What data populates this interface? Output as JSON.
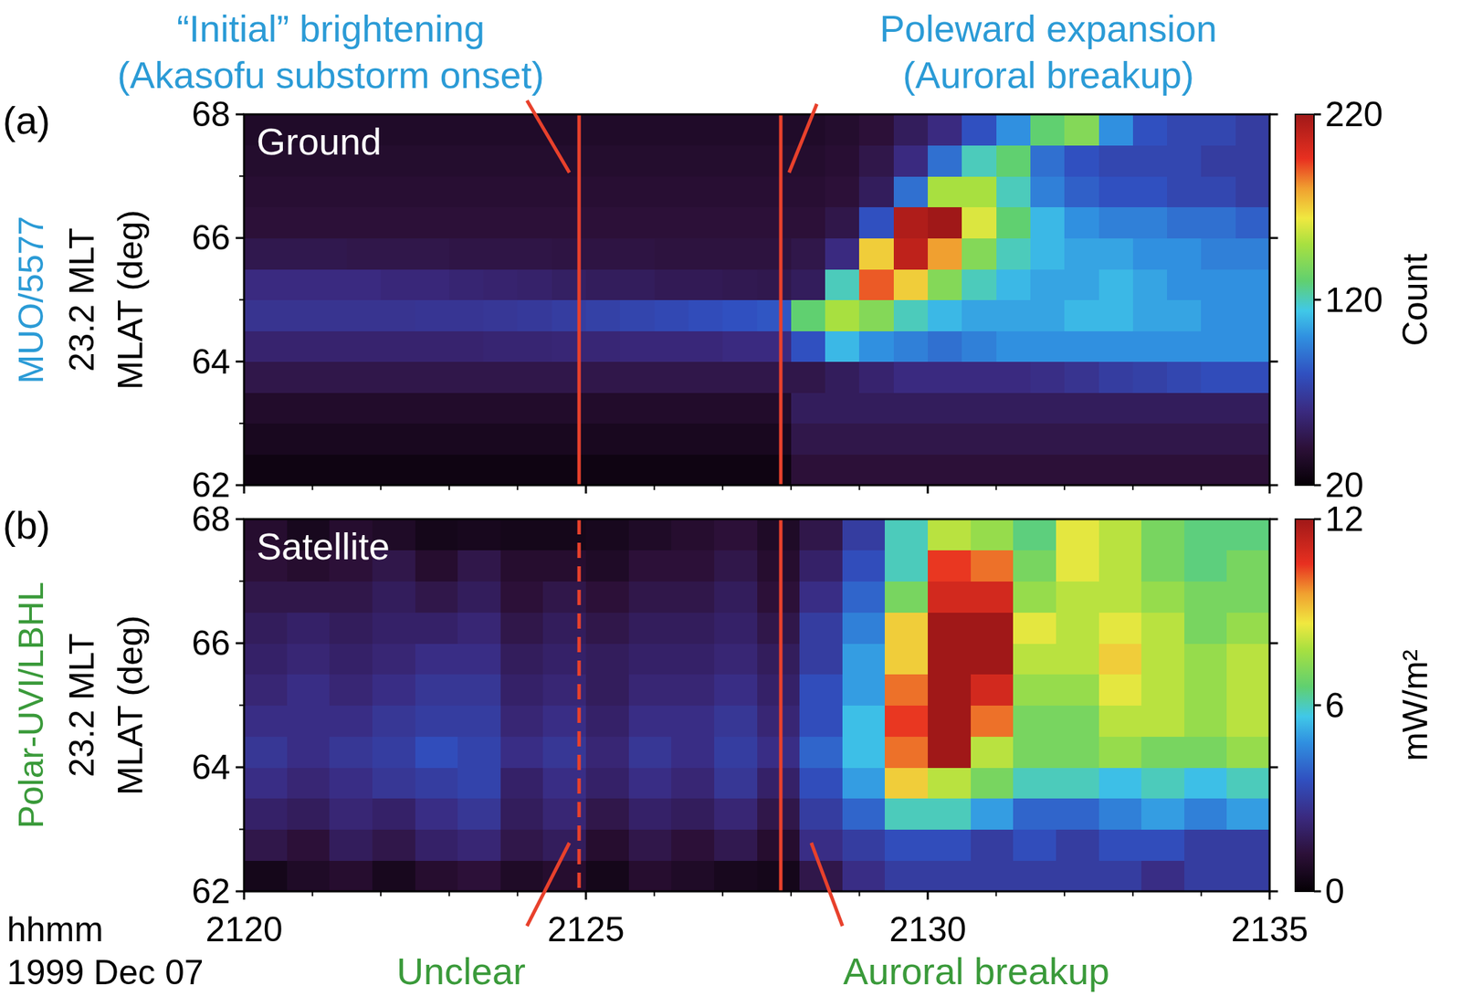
{
  "chart_data": [
    {
      "type": "heatmap",
      "panel": "(a)",
      "title": "Ground",
      "ylabel": [
        "MUO/5577",
        "23.2 MLT",
        "MLAT (deg)"
      ],
      "x_edges": [
        2120,
        2120.5,
        2121,
        2121.5,
        2122,
        2122.5,
        2123,
        2123.5,
        2124,
        2124.5,
        2125,
        2125.5,
        2126,
        2126.5,
        2127,
        2127.5,
        2128,
        2128.5,
        2129,
        2129.5,
        2130,
        2130.5,
        2131,
        2131.5,
        2132,
        2132.5,
        2133,
        2133.5,
        2134,
        2134.5,
        2135
      ],
      "y_edges": [
        62,
        62.5,
        63,
        63.5,
        64,
        64.5,
        65,
        65.5,
        66,
        66.5,
        67,
        67.5,
        68
      ],
      "values": [
        [
          25,
          25,
          25,
          25,
          25,
          25,
          25,
          25,
          25,
          25,
          25,
          25,
          25,
          25,
          25,
          25,
          40,
          40,
          40,
          40,
          40,
          40,
          40,
          40,
          40,
          40,
          40,
          40,
          40,
          40
        ],
        [
          30,
          30,
          30,
          30,
          30,
          30,
          30,
          30,
          30,
          30,
          30,
          30,
          30,
          30,
          30,
          30,
          45,
          45,
          45,
          45,
          45,
          45,
          45,
          45,
          45,
          45,
          45,
          45,
          45,
          45
        ],
        [
          35,
          35,
          35,
          35,
          35,
          35,
          35,
          35,
          35,
          35,
          35,
          35,
          35,
          35,
          35,
          35,
          50,
          50,
          50,
          50,
          50,
          50,
          50,
          50,
          50,
          50,
          50,
          50,
          50,
          50
        ],
        [
          45,
          45,
          45,
          45,
          45,
          45,
          45,
          45,
          45,
          45,
          45,
          45,
          45,
          45,
          45,
          45,
          45,
          50,
          55,
          60,
          60,
          60,
          60,
          62,
          65,
          70,
          72,
          75,
          78,
          78
        ],
        [
          55,
          55,
          55,
          55,
          55,
          55,
          55,
          56,
          56,
          57,
          57,
          58,
          58,
          58,
          60,
          60,
          80,
          110,
          100,
          95,
          90,
          95,
          100,
          100,
          100,
          100,
          100,
          100,
          100,
          100
        ],
        [
          65,
          65,
          65,
          65,
          65,
          66,
          66,
          67,
          68,
          70,
          72,
          74,
          76,
          78,
          80,
          82,
          130,
          150,
          140,
          120,
          110,
          105,
          105,
          105,
          110,
          110,
          105,
          105,
          100,
          100
        ],
        [
          60,
          60,
          60,
          60,
          58,
          58,
          56,
          55,
          54,
          52,
          50,
          50,
          48,
          48,
          47,
          46,
          50,
          120,
          190,
          170,
          140,
          120,
          110,
          105,
          105,
          110,
          105,
          100,
          100,
          100
        ],
        [
          46,
          46,
          46,
          45,
          45,
          45,
          44,
          44,
          44,
          43,
          43,
          43,
          42,
          42,
          42,
          42,
          45,
          60,
          170,
          210,
          180,
          140,
          120,
          110,
          105,
          105,
          100,
          100,
          95,
          95
        ],
        [
          40,
          40,
          40,
          40,
          40,
          40,
          40,
          40,
          40,
          40,
          40,
          40,
          40,
          40,
          40,
          40,
          40,
          45,
          80,
          215,
          220,
          160,
          130,
          110,
          100,
          95,
          95,
          90,
          90,
          85
        ],
        [
          38,
          38,
          38,
          38,
          38,
          38,
          38,
          38,
          38,
          38,
          38,
          38,
          38,
          38,
          38,
          38,
          38,
          40,
          50,
          90,
          150,
          150,
          120,
          95,
          85,
          80,
          80,
          75,
          75,
          70
        ],
        [
          36,
          36,
          36,
          36,
          36,
          36,
          36,
          36,
          36,
          36,
          36,
          36,
          36,
          36,
          36,
          36,
          36,
          38,
          45,
          60,
          90,
          120,
          130,
          90,
          80,
          75,
          75,
          75,
          70,
          70
        ],
        [
          34,
          34,
          34,
          34,
          34,
          34,
          34,
          34,
          34,
          34,
          34,
          34,
          34,
          34,
          34,
          34,
          34,
          36,
          40,
          50,
          60,
          80,
          100,
          130,
          140,
          100,
          80,
          75,
          75,
          70
        ]
      ],
      "xlim": [
        2120,
        2135
      ],
      "xticks": [
        2120,
        2125,
        2130,
        2135
      ],
      "xminor_ticks": [
        2121,
        2122,
        2123,
        2124,
        2126,
        2127,
        2128,
        2129,
        2131,
        2132,
        2133,
        2134
      ],
      "ylim": [
        62,
        68
      ],
      "yticks": [
        62,
        64,
        66,
        68
      ],
      "yminor_ticks": [
        63,
        65,
        67
      ],
      "tick_labels": "y",
      "colorbar": {
        "lim": [
          20,
          220
        ],
        "ticks": [
          20,
          120,
          220
        ],
        "label": "Count"
      },
      "annotations": [
        {
          "x": 2124.9,
          "text": [
            "“Initial” brightening",
            "(Akasofu substorm onset)"
          ],
          "line_style": "solid"
        },
        {
          "x": 2127.85,
          "text": [
            "Poleward expansion",
            "(Auroral breakup)"
          ],
          "line_style": "solid"
        }
      ]
    },
    {
      "type": "heatmap",
      "panel": "(b)",
      "title": "Satellite",
      "ylabel": [
        "Polar-UVI/LBHL",
        "23.2 MLT",
        "MLAT (deg)"
      ],
      "xlabel": [
        "hhmm",
        "1999 Dec 07"
      ],
      "x_edges": [
        2120,
        2120.625,
        2121.25,
        2121.875,
        2122.5,
        2123.125,
        2123.75,
        2124.375,
        2125,
        2125.625,
        2126.25,
        2126.875,
        2127.5,
        2128.125,
        2128.75,
        2129.375,
        2130,
        2130.625,
        2131.25,
        2131.875,
        2132.5,
        2133.125,
        2133.75,
        2134.375,
        2135
      ],
      "y_edges": [
        62,
        62.5,
        63,
        63.5,
        64,
        64.5,
        65,
        65.5,
        66,
        66.5,
        67,
        67.5,
        68
      ],
      "values": [
        [
          0.5,
          0.8,
          1,
          0.6,
          1,
          1.2,
          0.8,
          1,
          0.5,
          1,
          0.8,
          0.6,
          0.5,
          1.5,
          2.5,
          3,
          3,
          3,
          3,
          3,
          3,
          2.5,
          3,
          3
        ],
        [
          1.5,
          1.2,
          1.8,
          1.5,
          2,
          2.2,
          1.5,
          1.8,
          1,
          1.5,
          1.2,
          1.6,
          1,
          2.5,
          3,
          3.5,
          3.5,
          3,
          3.5,
          3,
          3.5,
          3.5,
          3,
          3
        ],
        [
          2,
          1.8,
          2.2,
          2,
          2.5,
          2.8,
          1.8,
          2.2,
          1.5,
          2,
          1.8,
          2.2,
          1.5,
          3,
          4,
          6,
          6,
          5,
          4,
          4,
          4.5,
          5,
          4.5,
          5
        ],
        [
          2.5,
          2.2,
          2.5,
          2.8,
          3,
          3.2,
          2,
          2.5,
          2,
          2.5,
          2.2,
          2.8,
          2,
          3.5,
          5,
          9,
          8,
          7,
          6,
          6,
          5.5,
          6,
          5.5,
          6
        ],
        [
          2.8,
          2.5,
          2.8,
          3,
          3.5,
          3.2,
          2.5,
          2.8,
          2.2,
          2.8,
          2.5,
          3,
          2.5,
          4,
          5.5,
          10,
          12,
          8,
          7,
          7,
          7.5,
          7,
          7,
          7.5
        ],
        [
          2.5,
          2.5,
          2.5,
          2.8,
          3,
          3,
          2.2,
          2.5,
          2,
          2.5,
          2.5,
          2.8,
          2.2,
          3.5,
          5.5,
          10.5,
          12,
          10,
          7,
          7,
          8,
          8,
          7.5,
          8
        ],
        [
          2.2,
          2.5,
          2.2,
          2.5,
          2.8,
          2.8,
          2,
          2.2,
          1.8,
          2.2,
          2.2,
          2.5,
          2,
          3.5,
          5,
          10,
          12,
          11,
          7.5,
          7.5,
          8.5,
          8,
          7.5,
          8
        ],
        [
          2,
          2.2,
          2,
          2.2,
          2.5,
          2.5,
          1.8,
          2,
          1.8,
          2,
          2,
          2.2,
          1.8,
          3,
          5,
          9,
          12,
          12,
          8,
          8,
          9,
          8,
          7.5,
          8
        ],
        [
          1.8,
          2,
          1.8,
          2,
          2,
          2.2,
          1.5,
          1.8,
          1.5,
          1.8,
          1.8,
          2,
          1.5,
          3,
          4.5,
          9,
          12,
          12,
          8.5,
          8,
          8.5,
          8,
          7,
          7.5
        ],
        [
          1.5,
          1.5,
          1.5,
          1.8,
          1.5,
          1.8,
          1.2,
          1.5,
          1.2,
          1.5,
          1.5,
          1.8,
          1.2,
          2.5,
          4,
          7,
          11,
          11,
          7.5,
          8,
          8,
          7.5,
          7,
          7
        ],
        [
          1.2,
          1,
          1.2,
          1.5,
          1,
          1.5,
          1,
          1,
          0.8,
          1.2,
          1.2,
          1.5,
          1,
          2,
          3.5,
          6,
          10.5,
          10,
          7,
          8.5,
          8,
          7,
          6.5,
          7
        ],
        [
          1,
          0.6,
          1,
          0.8,
          0.5,
          0.6,
          0.5,
          0.5,
          0.6,
          0.8,
          1,
          1.2,
          0.8,
          1.5,
          3,
          6,
          8,
          7.5,
          6.5,
          8.5,
          8,
          7,
          6.5,
          6.5
        ]
      ],
      "xlim": [
        2120,
        2135
      ],
      "xticks": [
        2120,
        2125,
        2130,
        2135
      ],
      "xminor_ticks": [
        2121,
        2122,
        2123,
        2124,
        2126,
        2127,
        2128,
        2129,
        2131,
        2132,
        2133,
        2134
      ],
      "ylim": [
        62,
        68
      ],
      "yticks": [
        62,
        64,
        66,
        68
      ],
      "yminor_ticks": [
        63,
        65,
        67
      ],
      "tick_labels": true,
      "colorbar": {
        "lim": [
          0,
          12
        ],
        "ticks": [
          0,
          6,
          12
        ],
        "label": "mW/m²"
      },
      "annotations": [
        {
          "x": 2124.9,
          "text": [
            "Unclear"
          ],
          "line_style": "dashed"
        },
        {
          "x": 2127.85,
          "text": [
            "Auroral breakup"
          ],
          "line_style": "solid"
        }
      ]
    }
  ]
}
